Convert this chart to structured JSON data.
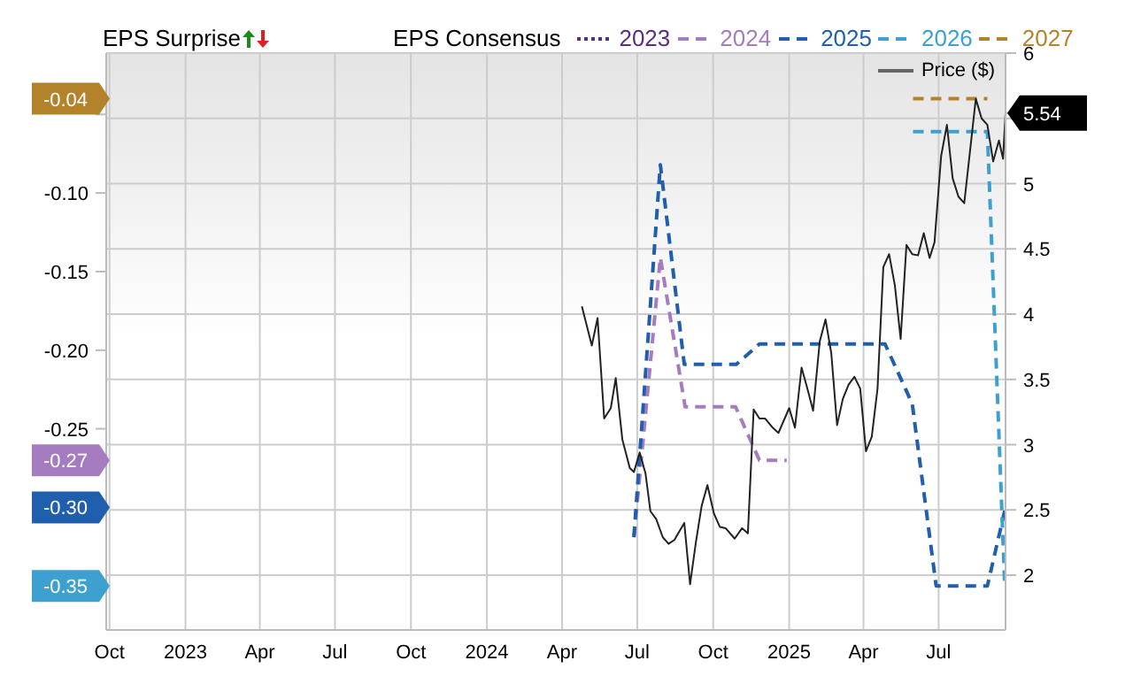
{
  "chart_data": {
    "type": "line",
    "legend_title": "EPS Consensus",
    "annotations": [
      "EPS Surprise"
    ],
    "xlim": [
      "2022-09-27",
      "2025-09-20"
    ],
    "xticks": [
      {
        "value": "2022-10-01",
        "label": "Oct"
      },
      {
        "value": "2023-01-01",
        "label": "2023"
      },
      {
        "value": "2023-04-01",
        "label": "Apr"
      },
      {
        "value": "2023-07-01",
        "label": "Jul"
      },
      {
        "value": "2023-10-01",
        "label": "Oct"
      },
      {
        "value": "2024-01-01",
        "label": "2024"
      },
      {
        "value": "2024-04-01",
        "label": "Apr"
      },
      {
        "value": "2024-07-01",
        "label": "Jul"
      },
      {
        "value": "2024-10-01",
        "label": "Oct"
      },
      {
        "value": "2025-01-01",
        "label": "2025"
      },
      {
        "value": "2025-04-01",
        "label": "Apr"
      },
      {
        "value": "2025-07-01",
        "label": "Jul"
      }
    ],
    "ylim": [
      -0.378,
      -0.011
    ],
    "yticks": [
      {
        "value": -0.05,
        "label": null
      },
      {
        "value": -0.1,
        "label": "-0.10"
      },
      {
        "value": -0.15,
        "label": "-0.15"
      },
      {
        "value": -0.2,
        "label": "-0.20"
      },
      {
        "value": -0.25,
        "label": "-0.25"
      },
      {
        "value": -0.04,
        "label": "-0.04"
      },
      {
        "value": -0.27,
        "label": "-0.27"
      },
      {
        "value": -0.3,
        "label": "-0.30"
      },
      {
        "value": -0.35,
        "label": "-0.35"
      }
    ],
    "y2lim": [
      1.58,
      6
    ],
    "y2ticks": [
      2,
      2.5,
      3,
      3.5,
      4,
      4.5,
      5,
      {
        "value": 5.5,
        "label": null
      },
      6,
      {
        "value": 5.54,
        "label": "5.54"
      }
    ],
    "grid": true,
    "legend": "top",
    "marker": "none",
    "series": [
      {
        "name": "2023",
        "color": "#5b2d83",
        "line_style": "dotted"
      },
      {
        "name": "2024",
        "color": "#a57cc0",
        "line_style": "dashed",
        "x": [
          "2024-06-27",
          "2024-07-29",
          "2024-08-28",
          "2024-10-28",
          "2024-11-26",
          "2024-12-29"
        ],
        "values": [
          -0.319,
          -0.141,
          -0.236,
          -0.236,
          -0.27,
          -0.27
        ]
      },
      {
        "name": "2025",
        "color": "#1f5fad",
        "line_style": "dashed",
        "x": [
          "2024-06-27",
          "2024-07-29",
          "2024-08-27",
          "2024-10-29",
          "2024-11-26",
          "2025-04-27",
          "2025-05-30",
          "2025-06-28",
          "2025-08-29",
          "2025-09-20"
        ],
        "values": [
          -0.319,
          -0.082,
          -0.209,
          -0.209,
          -0.196,
          -0.196,
          -0.234,
          -0.35,
          -0.35,
          -0.3
        ]
      },
      {
        "name": "2026",
        "color": "#3ca0d0",
        "line_style": "dashed",
        "x": [
          "2025-05-31",
          "2025-08-29",
          "2025-09-19"
        ],
        "values": [
          -0.061,
          -0.061,
          -0.35
        ]
      },
      {
        "name": "2027",
        "color": "#b5822c",
        "line_style": "dashed",
        "x": [
          "2025-05-31",
          "2025-08-29"
        ],
        "values": [
          -0.04,
          -0.04
        ]
      },
      {
        "name": "Price ($)",
        "color": "#222222",
        "line_style": "solid",
        "axis": "y2",
        "x": [
          "2024-04-25",
          "2024-05-07",
          "2024-05-14",
          "2024-05-22",
          "2024-05-30",
          "2024-06-05",
          "2024-06-13",
          "2024-06-22",
          "2024-06-27",
          "2024-07-04",
          "2024-07-11",
          "2024-07-17",
          "2024-07-24",
          "2024-08-01",
          "2024-08-08",
          "2024-08-15",
          "2024-08-27",
          "2024-09-03",
          "2024-09-10",
          "2024-09-17",
          "2024-09-24",
          "2024-10-02",
          "2024-10-09",
          "2024-10-16",
          "2024-10-27",
          "2024-11-05",
          "2024-11-12",
          "2024-11-19",
          "2024-11-26",
          "2024-12-03",
          "2024-12-12",
          "2024-12-19",
          "2025-01-01",
          "2025-01-08",
          "2025-01-16",
          "2025-01-23",
          "2025-01-30",
          "2025-02-07",
          "2025-02-14",
          "2025-02-21",
          "2025-02-28",
          "2025-03-07",
          "2025-03-14",
          "2025-03-21",
          "2025-03-28",
          "2025-04-04",
          "2025-04-11",
          "2025-04-18",
          "2025-04-25",
          "2025-05-02",
          "2025-05-09",
          "2025-05-16",
          "2025-05-23",
          "2025-05-30",
          "2025-06-06",
          "2025-06-13",
          "2025-06-20",
          "2025-06-26",
          "2025-07-04",
          "2025-07-11",
          "2025-07-18",
          "2025-07-25",
          "2025-08-01",
          "2025-08-08",
          "2025-08-15",
          "2025-08-22",
          "2025-08-29",
          "2025-09-05",
          "2025-09-12",
          "2025-09-17",
          "2025-09-20"
        ],
        "values": [
          4.06,
          3.76,
          3.97,
          3.2,
          3.28,
          3.51,
          3.04,
          2.82,
          2.79,
          2.94,
          2.78,
          2.49,
          2.43,
          2.29,
          2.24,
          2.27,
          2.4,
          1.93,
          2.25,
          2.53,
          2.69,
          2.47,
          2.37,
          2.36,
          2.28,
          2.36,
          2.32,
          3.27,
          3.2,
          3.2,
          3.13,
          3.09,
          3.28,
          3.13,
          3.59,
          3.43,
          3.26,
          3.79,
          3.96,
          3.7,
          3.15,
          3.35,
          3.46,
          3.52,
          3.43,
          2.95,
          3.06,
          3.43,
          4.36,
          4.46,
          4.22,
          3.81,
          4.53,
          4.46,
          4.45,
          4.62,
          4.43,
          4.55,
          5.21,
          5.45,
          5.04,
          4.9,
          4.85,
          5.25,
          5.65,
          5.5,
          5.45,
          5.17,
          5.33,
          5.19,
          5.54
        ]
      }
    ]
  }
}
